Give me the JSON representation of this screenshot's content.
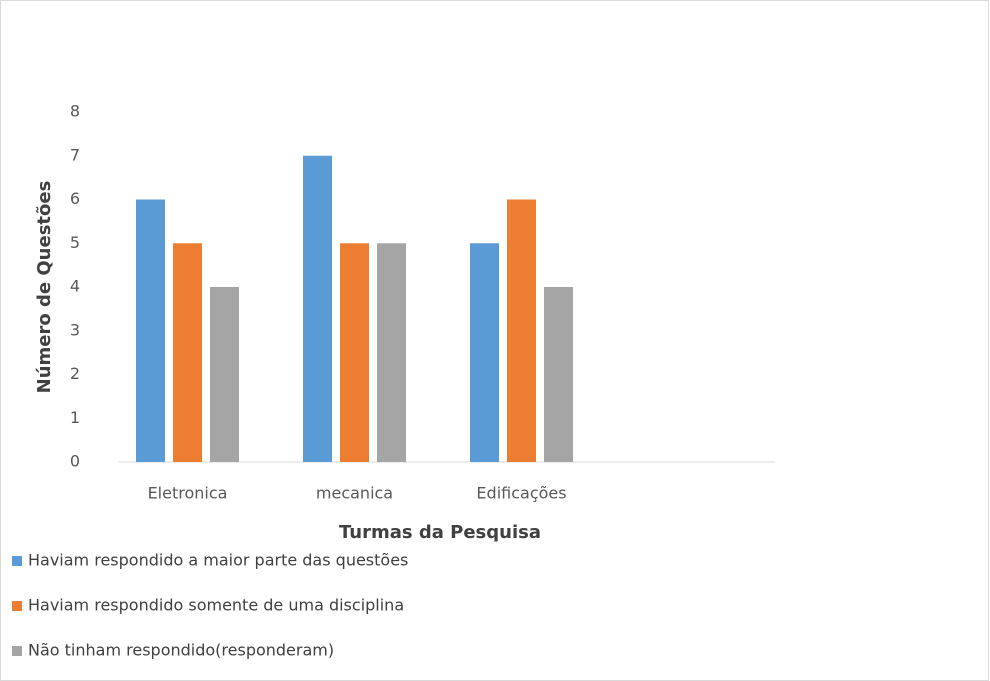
{
  "chart_data": {
    "type": "bar",
    "x_label": "Turmas da Pesquisa",
    "y_label": "Número de Questões",
    "categories": [
      "Eletronica",
      "mecanica",
      "Edificações",
      null
    ],
    "series": [
      {
        "name": "Haviam respondido a maior parte das questões",
        "color": "#5b9bd5",
        "values": [
          6,
          7,
          5,
          null
        ]
      },
      {
        "name": "Haviam respondido somente de uma disciplina",
        "color": "#ed7d31",
        "values": [
          5,
          5,
          6,
          null
        ]
      },
      {
        "name": "Não tinham respondido(responderam)",
        "color": "#a5a5a5",
        "values": [
          4,
          5,
          4,
          null
        ]
      }
    ],
    "ylim": [
      0,
      8
    ],
    "yticks": [
      0,
      1,
      2,
      3,
      4,
      5,
      6,
      7,
      8
    ],
    "grid": false,
    "legend": "bottom"
  }
}
